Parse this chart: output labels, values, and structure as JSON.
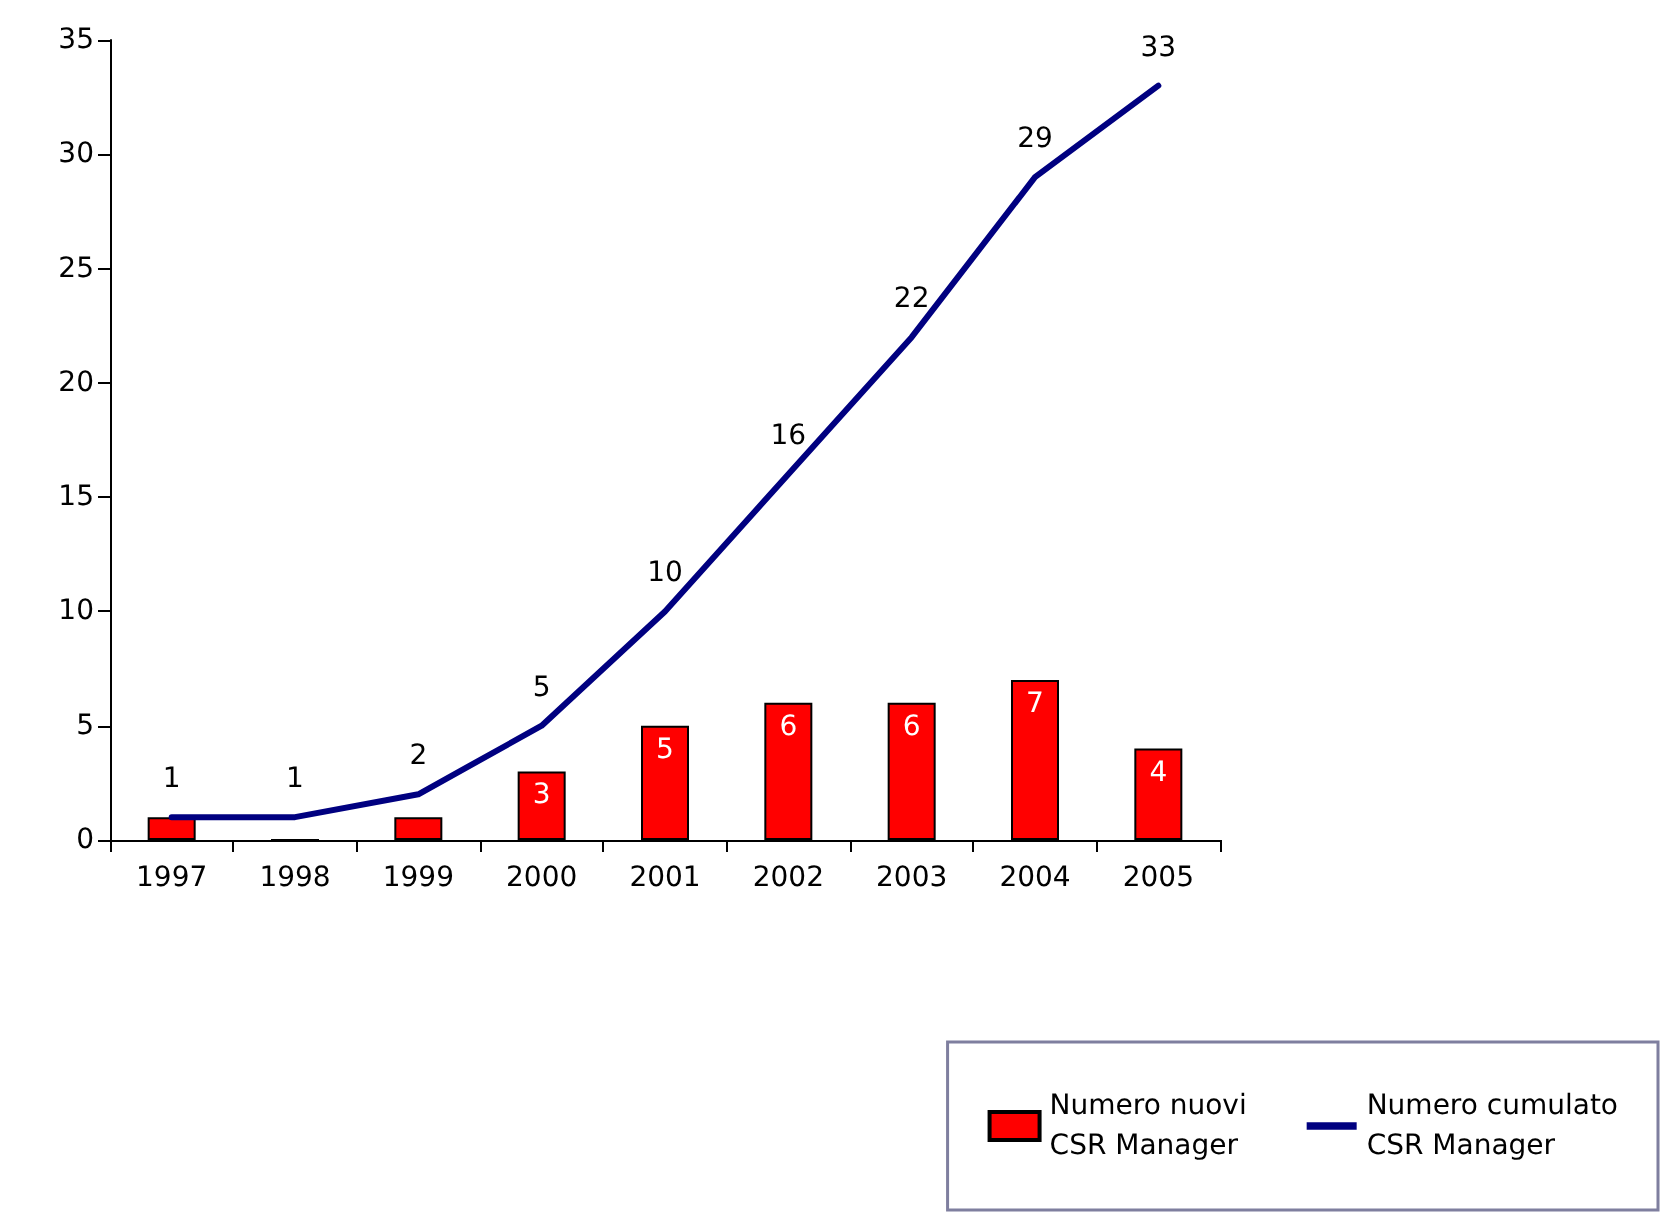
{
  "chart_data": {
    "type": "bar",
    "categories": [
      "1997",
      "1998",
      "1999",
      "2000",
      "2001",
      "2002",
      "2003",
      "2004",
      "2005"
    ],
    "series": [
      {
        "name": "Numero nuovi\nCSR Manager",
        "color": "#ff0000",
        "values": [
          1,
          0,
          1,
          3,
          5,
          6,
          6,
          7,
          4
        ],
        "value_labels": [
          null,
          null,
          null,
          "3",
          "5",
          "6",
          "6",
          "7",
          "4"
        ]
      },
      {
        "name": "Numero cumulato\nCSR Manager",
        "type": "line",
        "color": "#000080",
        "values": [
          1,
          1,
          2,
          5,
          10,
          16,
          22,
          29,
          33
        ],
        "data_labels": true
      }
    ],
    "ylim": [
      0,
      35
    ],
    "yticks": [
      0,
      5,
      10,
      15,
      20,
      25,
      30,
      35
    ],
    "grid": false,
    "legend": "bottom right",
    "marker": "none"
  }
}
